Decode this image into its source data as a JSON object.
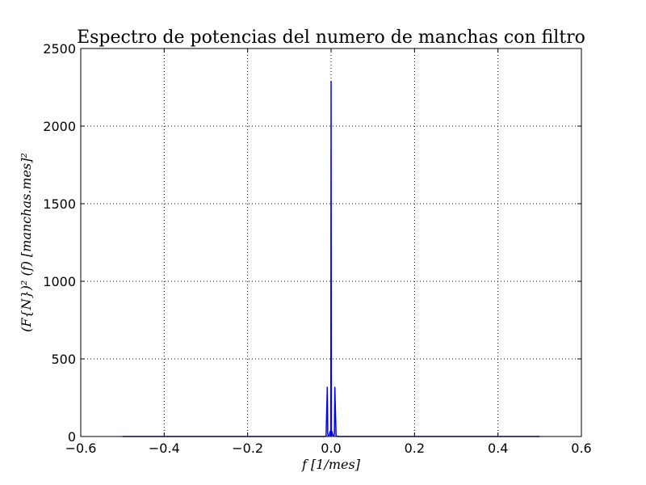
{
  "chart_data": {
    "type": "line",
    "title": "Espectro de potencias del numero de manchas con filtro",
    "xlabel": "f [1/mes]",
    "ylabel": "(F{N})² (f) [manchas.mes]²",
    "xlim": [
      -0.6,
      0.6
    ],
    "ylim": [
      0,
      2500
    ],
    "xticks": [
      -0.6,
      -0.4,
      -0.2,
      0.0,
      0.2,
      0.4,
      0.6
    ],
    "xtick_labels": [
      "−0.6",
      "−0.4",
      "−0.2",
      "0.0",
      "0.2",
      "0.4",
      "0.6"
    ],
    "yticks": [
      0,
      500,
      1000,
      1500,
      2000,
      2500
    ],
    "ytick_labels": [
      "0",
      "500",
      "1000",
      "1500",
      "2000",
      "2500"
    ],
    "grid": true,
    "series": [
      {
        "color": "#0000ff",
        "x": [
          -0.5,
          -0.02,
          -0.012,
          -0.009,
          -0.008,
          -0.007,
          -0.004,
          -0.002,
          -0.0015,
          -0.0007,
          0.0,
          0.0007,
          0.0015,
          0.002,
          0.004,
          0.007,
          0.008,
          0.009,
          0.012,
          0.02,
          0.5
        ],
        "y": [
          0,
          0,
          1,
          320,
          20,
          5,
          10,
          35,
          5,
          0,
          2290,
          0,
          5,
          35,
          10,
          5,
          20,
          320,
          1,
          0,
          0
        ]
      }
    ]
  }
}
